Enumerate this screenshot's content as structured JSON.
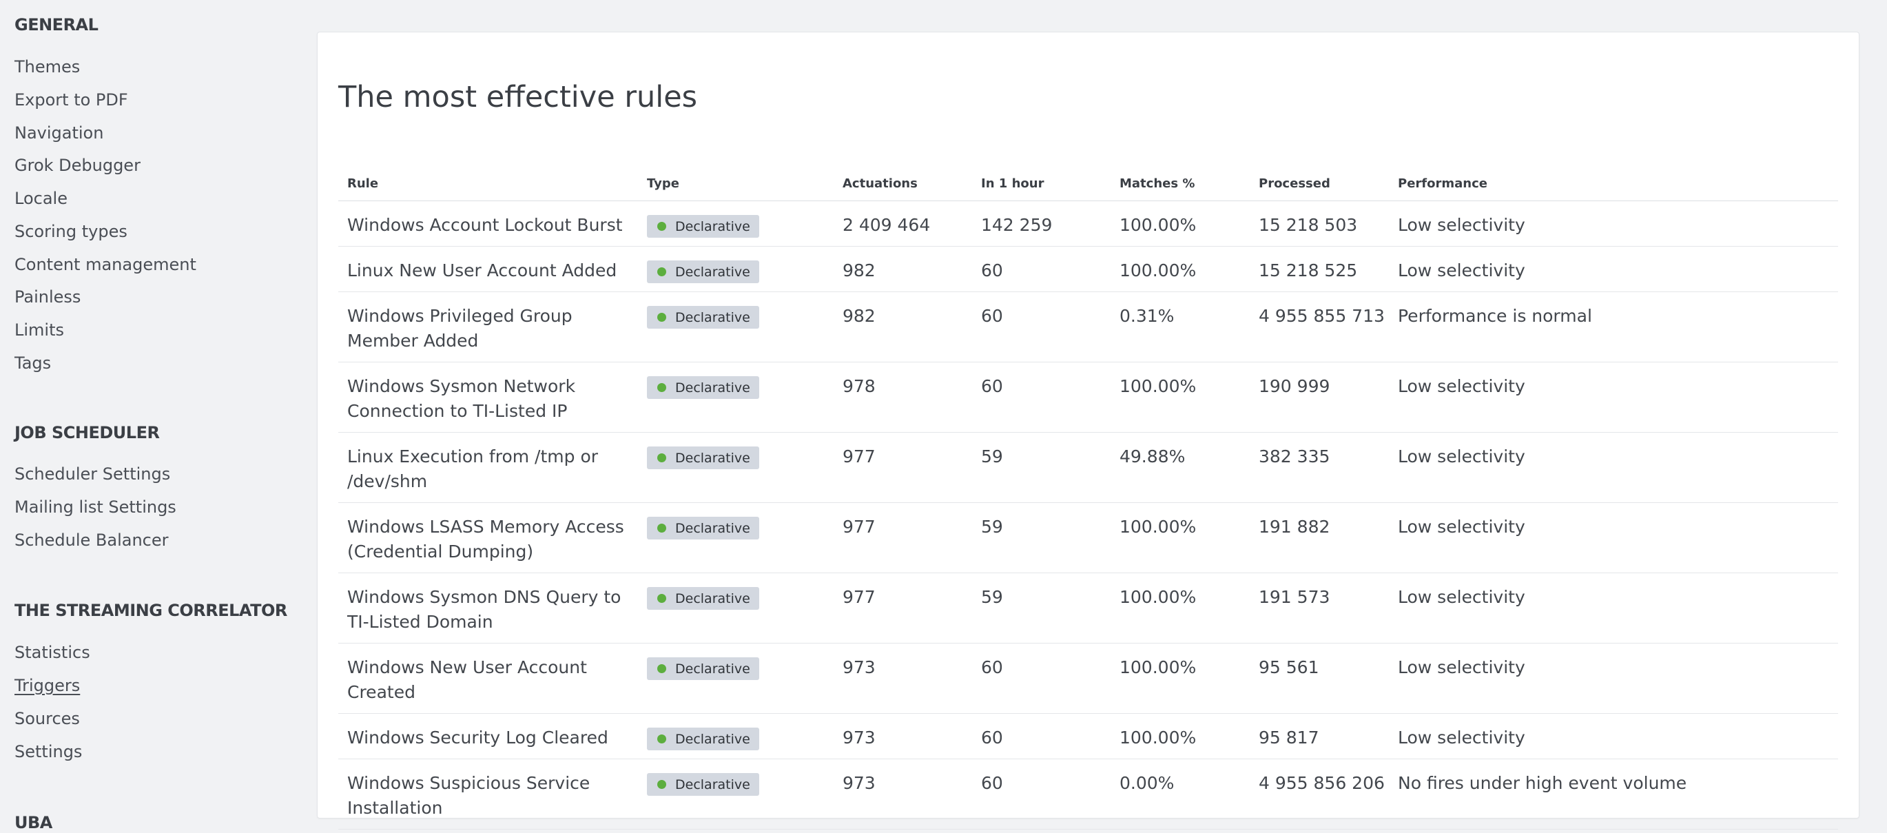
{
  "sidebar": {
    "sections": [
      {
        "heading": "GENERAL",
        "items": [
          "Themes",
          "Export to PDF",
          "Navigation",
          "Grok Debugger",
          "Locale",
          "Scoring types",
          "Content management",
          "Painless",
          "Limits",
          "Tags"
        ]
      },
      {
        "heading": "JOB SCHEDULER",
        "items": [
          "Scheduler Settings",
          "Mailing list Settings",
          "Schedule Balancer"
        ]
      },
      {
        "heading": "THE STREAMING CORRELATOR",
        "items": [
          "Statistics",
          "Triggers",
          "Sources",
          "Settings"
        ]
      },
      {
        "heading": "UBA",
        "items": []
      }
    ],
    "active_item": "Triggers"
  },
  "panel": {
    "title": "The most effective rules",
    "columns": [
      "Rule",
      "Type",
      "Actuations",
      "In 1 hour",
      "Matches %",
      "Processed",
      "Performance"
    ],
    "rows": [
      {
        "rule": "Windows Account Lockout Burst",
        "type": "Declarative",
        "actuations": "2 409 464",
        "in_1_hour": "142 259",
        "matches": "100.00%",
        "processed": "15 218 503",
        "performance": "Low selectivity"
      },
      {
        "rule": "Linux New User Account Added",
        "type": "Declarative",
        "actuations": "982",
        "in_1_hour": "60",
        "matches": "100.00%",
        "processed": "15 218 525",
        "performance": "Low selectivity"
      },
      {
        "rule": "Windows Privileged Group Member Added",
        "type": "Declarative",
        "actuations": "982",
        "in_1_hour": "60",
        "matches": "0.31%",
        "processed": "4 955 855 713",
        "performance": "Performance is normal"
      },
      {
        "rule": "Windows Sysmon Network Connection to TI-Listed IP",
        "type": "Declarative",
        "actuations": "978",
        "in_1_hour": "60",
        "matches": "100.00%",
        "processed": "190 999",
        "performance": "Low selectivity"
      },
      {
        "rule": "Linux Execution from /tmp or /dev/shm",
        "type": "Declarative",
        "actuations": "977",
        "in_1_hour": "59",
        "matches": "49.88%",
        "processed": "382 335",
        "performance": "Low selectivity"
      },
      {
        "rule": "Windows LSASS Memory Access (Credential Dumping)",
        "type": "Declarative",
        "actuations": "977",
        "in_1_hour": "59",
        "matches": "100.00%",
        "processed": "191 882",
        "performance": "Low selectivity"
      },
      {
        "rule": "Windows Sysmon DNS Query to TI-Listed Domain",
        "type": "Declarative",
        "actuations": "977",
        "in_1_hour": "59",
        "matches": "100.00%",
        "processed": "191 573",
        "performance": "Low selectivity"
      },
      {
        "rule": "Windows New User Account Created",
        "type": "Declarative",
        "actuations": "973",
        "in_1_hour": "60",
        "matches": "100.00%",
        "processed": "95 561",
        "performance": "Low selectivity"
      },
      {
        "rule": "Windows Security Log Cleared",
        "type": "Declarative",
        "actuations": "973",
        "in_1_hour": "60",
        "matches": "100.00%",
        "processed": "95 817",
        "performance": "Low selectivity"
      },
      {
        "rule": "Windows Suspicious Service Installation",
        "type": "Declarative",
        "actuations": "973",
        "in_1_hour": "60",
        "matches": "0.00%",
        "processed": "4 955 856 206",
        "performance": "No fires under high event volume"
      }
    ]
  },
  "colors": {
    "background": "#f1f2f4",
    "badge_background": "#d3d8e0",
    "status_dot": "#5cae3e"
  },
  "icons": {
    "type_status": "green-dot-icon"
  }
}
